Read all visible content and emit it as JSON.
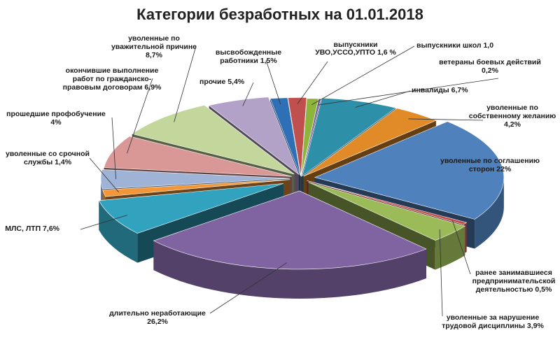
{
  "chart_data": {
    "type": "pie",
    "title": "Категории безработных  на 01.01.2018",
    "unit": "%",
    "slices": [
      {
        "label": "выпускники школ 1,0",
        "value": 1.0,
        "color": "#8DB53C"
      },
      {
        "label": "ветераны боевых действий\n0,2%",
        "value": 0.2,
        "color": "#6E5B9A"
      },
      {
        "label": "инвалиды 6,7%",
        "value": 6.7,
        "color": "#2E8FA8"
      },
      {
        "label": "уволенные по\nсобственному желанию\n4,2%",
        "value": 4.2,
        "color": "#E08A28"
      },
      {
        "label": "уволенные по соглашению\nсторон 22%",
        "value": 22.0,
        "color": "#4F81BD"
      },
      {
        "label": "ранее занимавшиеся\nпредпринимательской\nдеятельностью 0,5%",
        "value": 0.5,
        "color": "#C0504D"
      },
      {
        "label": "уволенные за нарушение\nтрудовой дисциплины 3,9%",
        "value": 3.9,
        "color": "#9BBB59"
      },
      {
        "label": "длительно неработающие\n26,2%",
        "value": 26.2,
        "color": "#8064A2"
      },
      {
        "label": "МЛС, ЛТП 7,6%",
        "value": 7.6,
        "color": "#31A3BF"
      },
      {
        "label": "уволенные со срочной\nслужбы 1,4%",
        "value": 1.4,
        "color": "#F29637"
      },
      {
        "label": "прошедшие профобучение\n4%",
        "value": 4.0,
        "color": "#9EB3D6"
      },
      {
        "label": "окончившие выполнение\nработ по гражданско-\nправовым договорам 6,9%",
        "value": 6.9,
        "color": "#D99795"
      },
      {
        "label": "уволенные по\nуважительной причине\n8,7%",
        "value": 8.7,
        "color": "#C3D69B"
      },
      {
        "label": "прочие 5,4%",
        "value": 5.4,
        "color": "#B3A2C7"
      },
      {
        "label": "высвобожденные\nработники 1,5%",
        "value": 1.5,
        "color": "#2E6FB5"
      },
      {
        "label": "УВО,УССО,УПТО 1,6 %",
        "value": 1.6,
        "color": "#C0504D"
      },
      {
        "label": "выпускники",
        "value": null,
        "color": "#1a1a1a"
      }
    ]
  }
}
